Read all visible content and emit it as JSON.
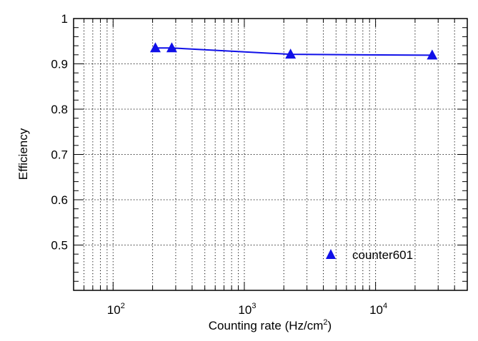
{
  "chart_data": {
    "type": "line",
    "xlabel": "Counting rate (Hz/cm",
    "xlabel_sup": "2",
    "xlabel_end": ")",
    "ylabel": "Efficiency",
    "x_scale": "log",
    "xlim": [
      50,
      50000
    ],
    "ylim": [
      0.4,
      1.0
    ],
    "grid": true,
    "legend_position": "bottom-right",
    "x_tick_labels": [
      {
        "value": 100,
        "base": "10",
        "exp": "2"
      },
      {
        "value": 1000,
        "base": "10",
        "exp": "3"
      },
      {
        "value": 10000,
        "base": "10",
        "exp": "4"
      }
    ],
    "y_ticks": [
      0.5,
      0.6,
      0.7,
      0.8,
      0.9,
      1.0
    ],
    "y_tick_labels": [
      "0.5",
      "0.6",
      "0.7",
      "0.8",
      "0.9",
      "1"
    ],
    "series": [
      {
        "name": "counter601",
        "color": "#1010e8",
        "marker": "triangle",
        "x": [
          210,
          280,
          2250,
          27000
        ],
        "y": [
          0.935,
          0.935,
          0.921,
          0.919
        ]
      }
    ]
  }
}
